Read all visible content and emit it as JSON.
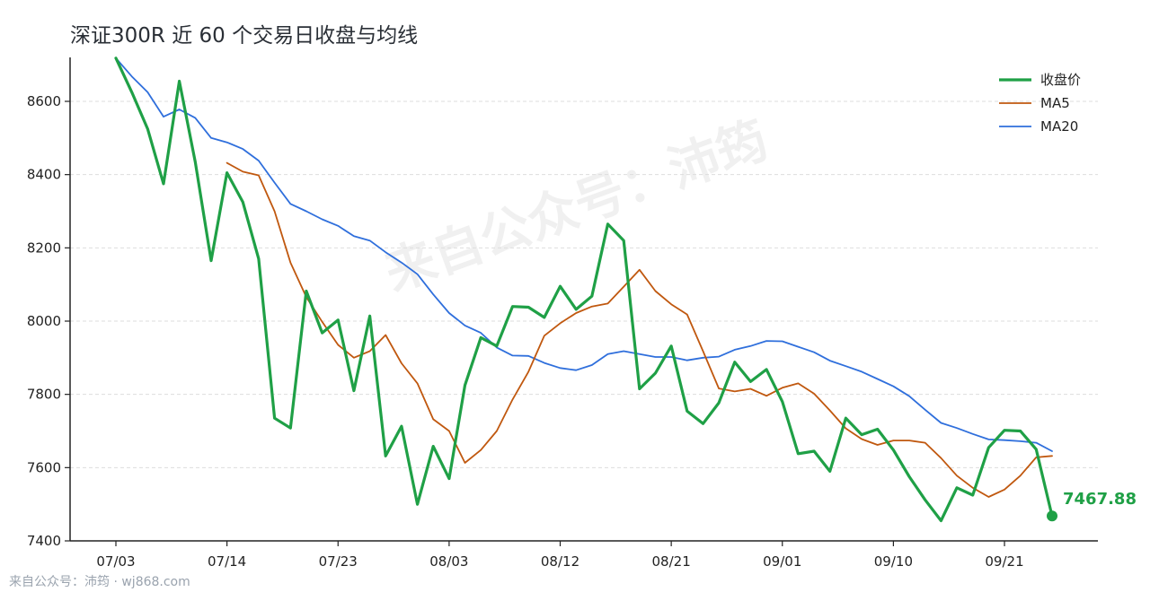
{
  "title": "深证300R 近 60 个交易日收盘与均线",
  "watermark": "来自公众号：沛筠",
  "footer": "来自公众号：沛筠 · wj868.com",
  "colors": {
    "close": "#1fa046",
    "ma5": "#c0580f",
    "ma20": "#2f6fdc",
    "grid": "#dddddd",
    "axis": "#222222"
  },
  "chart_data": {
    "type": "line",
    "title": "深证300R 近 60 个交易日收盘与均线",
    "xlabel": "",
    "ylabel": "",
    "ylim": [
      7400,
      8720
    ],
    "yticks": [
      7400,
      7600,
      7800,
      8000,
      8200,
      8400,
      8600
    ],
    "xticks": [
      {
        "index": 0,
        "label": "07/03"
      },
      {
        "index": 7,
        "label": "07/14"
      },
      {
        "index": 14,
        "label": "07/23"
      },
      {
        "index": 21,
        "label": "08/03"
      },
      {
        "index": 28,
        "label": "08/12"
      },
      {
        "index": 35,
        "label": "08/21"
      },
      {
        "index": 42,
        "label": "09/01"
      },
      {
        "index": 49,
        "label": "09/10"
      },
      {
        "index": 56,
        "label": "09/21"
      }
    ],
    "grid": "horizontal-dashed",
    "legend": "top-right",
    "series": [
      {
        "name": "收盘价",
        "values": [
          8718,
          8625,
          8525,
          8375,
          8655,
          8435,
          8165,
          8405,
          8325,
          8170,
          7735,
          7708,
          8082,
          7968,
          8003,
          7810,
          8014,
          7632,
          7713,
          7500,
          7658,
          7570,
          7825,
          7955,
          7932,
          8040,
          8038,
          8010,
          8095,
          8032,
          8068,
          8265,
          8220,
          7815,
          7858,
          7932,
          7754,
          7720,
          7777,
          7888,
          7835,
          7868,
          7780,
          7638,
          7645,
          7590,
          7735,
          7690,
          7705,
          7648,
          7575,
          7512,
          7455,
          7545,
          7525,
          7655,
          7702,
          7700,
          7650,
          7468
        ]
      },
      {
        "name": "MA5",
        "values": [
          null,
          null,
          null,
          null,
          null,
          null,
          null,
          8432,
          8408,
          8398,
          8300,
          8160,
          8066,
          7998,
          7935,
          7900,
          7918,
          7962,
          7885,
          7830,
          7732,
          7700,
          7613,
          7648,
          7700,
          7786,
          7862,
          7960,
          7994,
          8022,
          8040,
          8048,
          8094,
          8140,
          8082,
          8046,
          8018,
          7918,
          7816,
          7808,
          7815,
          7796,
          7818,
          7830,
          7802,
          7756,
          7707,
          7678,
          7662,
          7674,
          7674,
          7668,
          7626,
          7578,
          7545,
          7520,
          7540,
          7578,
          7628,
          7632
        ]
      },
      {
        "name": "MA20",
        "values": [
          8718,
          8668,
          8625,
          8558,
          8578,
          8555,
          8500,
          8488,
          8470,
          8438,
          8378,
          8320,
          8300,
          8278,
          8260,
          8232,
          8220,
          8188,
          8160,
          8128,
          8073,
          8022,
          7988,
          7968,
          7928,
          7906,
          7905,
          7886,
          7872,
          7866,
          7880,
          7910,
          7918,
          7910,
          7902,
          7902,
          7893,
          7900,
          7903,
          7922,
          7932,
          7946,
          7945,
          7930,
          7915,
          7892,
          7877,
          7862,
          7842,
          7822,
          7795,
          7758,
          7722,
          7708,
          7692,
          7677,
          7675,
          7672,
          7668,
          7645
        ]
      }
    ],
    "last_point": {
      "series": "收盘价",
      "value": "7467.88"
    }
  }
}
